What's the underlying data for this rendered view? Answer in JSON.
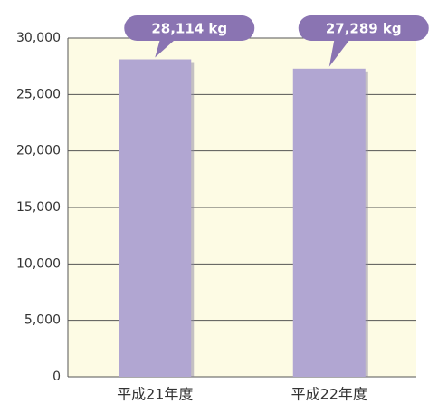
{
  "chart_data": {
    "type": "bar",
    "categories": [
      "平成21年度",
      "平成22年度"
    ],
    "values": [
      28114,
      27289
    ],
    "value_labels": [
      "28,114 kg",
      "27,289 kg"
    ],
    "color": "#b1a6d2",
    "ylim": [
      0,
      30000
    ],
    "yticks": [
      0,
      {
        "value": 5000,
        "label": "5,000"
      },
      {
        "value": 10000,
        "label": "10,000"
      },
      {
        "value": 15000,
        "label": "15,000"
      },
      {
        "value": 20000,
        "label": "20,000"
      },
      {
        "value": 25000,
        "label": "25,000"
      },
      {
        "value": 30000,
        "label": "30,000"
      }
    ],
    "grid": true
  }
}
